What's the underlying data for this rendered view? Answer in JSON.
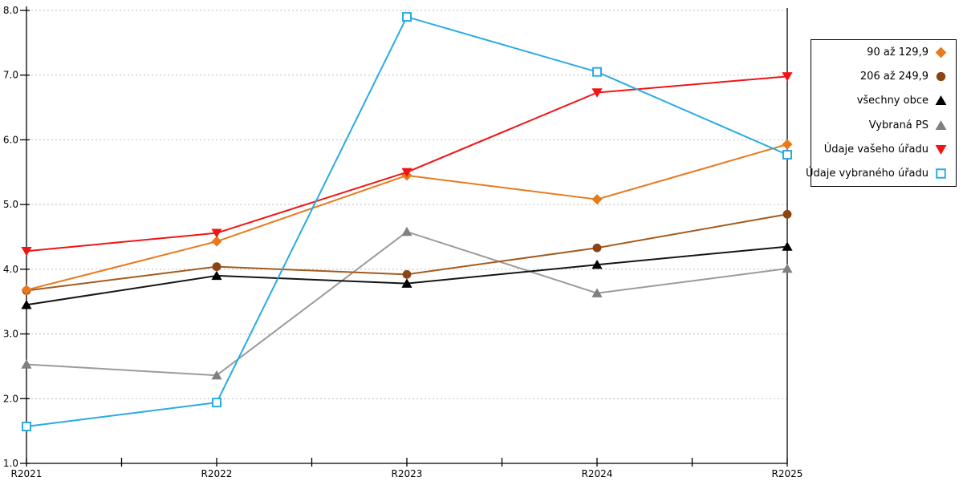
{
  "chart_data": {
    "type": "line",
    "title": "",
    "xlabel": "",
    "ylabel": "",
    "categories": [
      "R2021",
      "R2022",
      "R2023",
      "R2024",
      "R2025"
    ],
    "ylim": [
      1.0,
      8.0
    ],
    "ytick_step": 1.0,
    "ytick_labels": [
      "1.0",
      "2.0",
      "3.0",
      "4.0",
      "5.0",
      "6.0",
      "7.0",
      "8.0"
    ],
    "grid": "horizontal-dotted",
    "grid_color": "#BDBDBD",
    "axis_color": "#000000",
    "legend_position": "right-outside",
    "series": [
      {
        "name": "90 až 129,9",
        "marker": "diamond",
        "color": "#E8791D",
        "line_color": "#E8791D",
        "values": [
          3.68,
          4.43,
          5.45,
          5.08,
          5.93
        ]
      },
      {
        "name": "206 až 249,9",
        "marker": "circle",
        "color": "#8B4513",
        "line_color": "#A35A1E",
        "values": [
          3.67,
          4.04,
          3.92,
          4.33,
          4.85
        ]
      },
      {
        "name": "všechny obce",
        "marker": "triangle-up",
        "color": "#000000",
        "line_color": "#151515",
        "values": [
          3.45,
          3.9,
          3.78,
          4.07,
          4.35
        ]
      },
      {
        "name": "Vybraná PS",
        "marker": "triangle-up",
        "color": "#808080",
        "line_color": "#9B9B9B",
        "values": [
          2.53,
          2.36,
          4.58,
          3.63,
          4.01
        ]
      },
      {
        "name": "Údaje vašeho úřadu",
        "marker": "triangle-down",
        "color": "#F01414",
        "line_color": "#F01414",
        "values": [
          4.28,
          4.56,
          5.5,
          6.73,
          6.98
        ]
      },
      {
        "name": "Údaje vybraného úřadu",
        "marker": "square-open",
        "color": "#29ABE2",
        "line_color": "#29ABE2",
        "values": [
          1.57,
          1.94,
          7.9,
          7.05,
          5.77
        ]
      }
    ]
  }
}
